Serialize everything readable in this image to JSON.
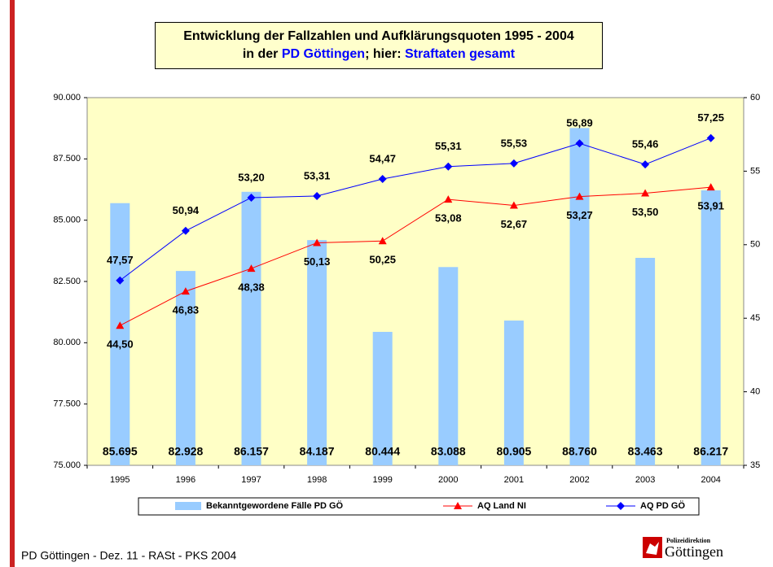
{
  "chart_data": {
    "type": "bar_line",
    "title": "Entwicklung der Fallzahlen und Aufklärungsquoten 1995 - 2004",
    "subtitle_parts": [
      "in der",
      "PD Göttingen",
      "; hier:",
      "Straftaten gesamt"
    ],
    "categories": [
      "1995",
      "1996",
      "1997",
      "1998",
      "1999",
      "2000",
      "2001",
      "2002",
      "2003",
      "2004"
    ],
    "ylim": [
      75000,
      90000
    ],
    "yticks": [
      {
        "value": 75000,
        "label": "75.000"
      },
      {
        "value": 77500,
        "label": "77.500"
      },
      {
        "value": 80000,
        "label": "80.000"
      },
      {
        "value": 82500,
        "label": "82.500"
      },
      {
        "value": 85000,
        "label": "85.000"
      },
      {
        "value": 87500,
        "label": "87.500"
      },
      {
        "value": 90000,
        "label": "90.000"
      }
    ],
    "y2lim": [
      35,
      60
    ],
    "y2ticks": [
      35,
      40,
      45,
      50,
      55,
      60
    ],
    "series": [
      {
        "name": "Bekanntgewordene Fälle PD GÖ",
        "kind": "bar",
        "color": "#99ccff",
        "values": [
          85695,
          82928,
          86157,
          84187,
          80444,
          83088,
          80905,
          88760,
          83463,
          86217
        ],
        "value_labels": [
          "85.695",
          "82.928",
          "86.157",
          "84.187",
          "80.444",
          "83.088",
          "80.905",
          "88.760",
          "83.463",
          "86.217"
        ]
      },
      {
        "name": "AQ Land NI",
        "kind": "line",
        "axis": "y2",
        "marker": "triangle",
        "color": "#ff0000",
        "values": [
          44.5,
          46.83,
          48.38,
          50.13,
          50.25,
          53.08,
          52.67,
          53.27,
          53.5,
          53.91
        ],
        "value_labels": [
          "44,50",
          "46,83",
          "48,38",
          "50,13",
          "50,25",
          "53,08",
          "52,67",
          "53,27",
          "53,50",
          "53,91"
        ]
      },
      {
        "name": "AQ PD GÖ",
        "kind": "line",
        "axis": "y2",
        "marker": "diamond",
        "color": "#0000ff",
        "values": [
          47.57,
          50.94,
          53.2,
          53.31,
          54.47,
          55.31,
          55.53,
          56.89,
          55.46,
          57.25
        ],
        "value_labels": [
          "47,57",
          "50,94",
          "53,20",
          "53,31",
          "54,47",
          "55,31",
          "55,53",
          "56,89",
          "55,46",
          "57,25"
        ]
      }
    ]
  },
  "footer": "PD Göttingen - Dez. 11 - RASt - PKS 2004",
  "logo": {
    "top": "Polizeidirektion",
    "bottom": "Göttingen"
  }
}
